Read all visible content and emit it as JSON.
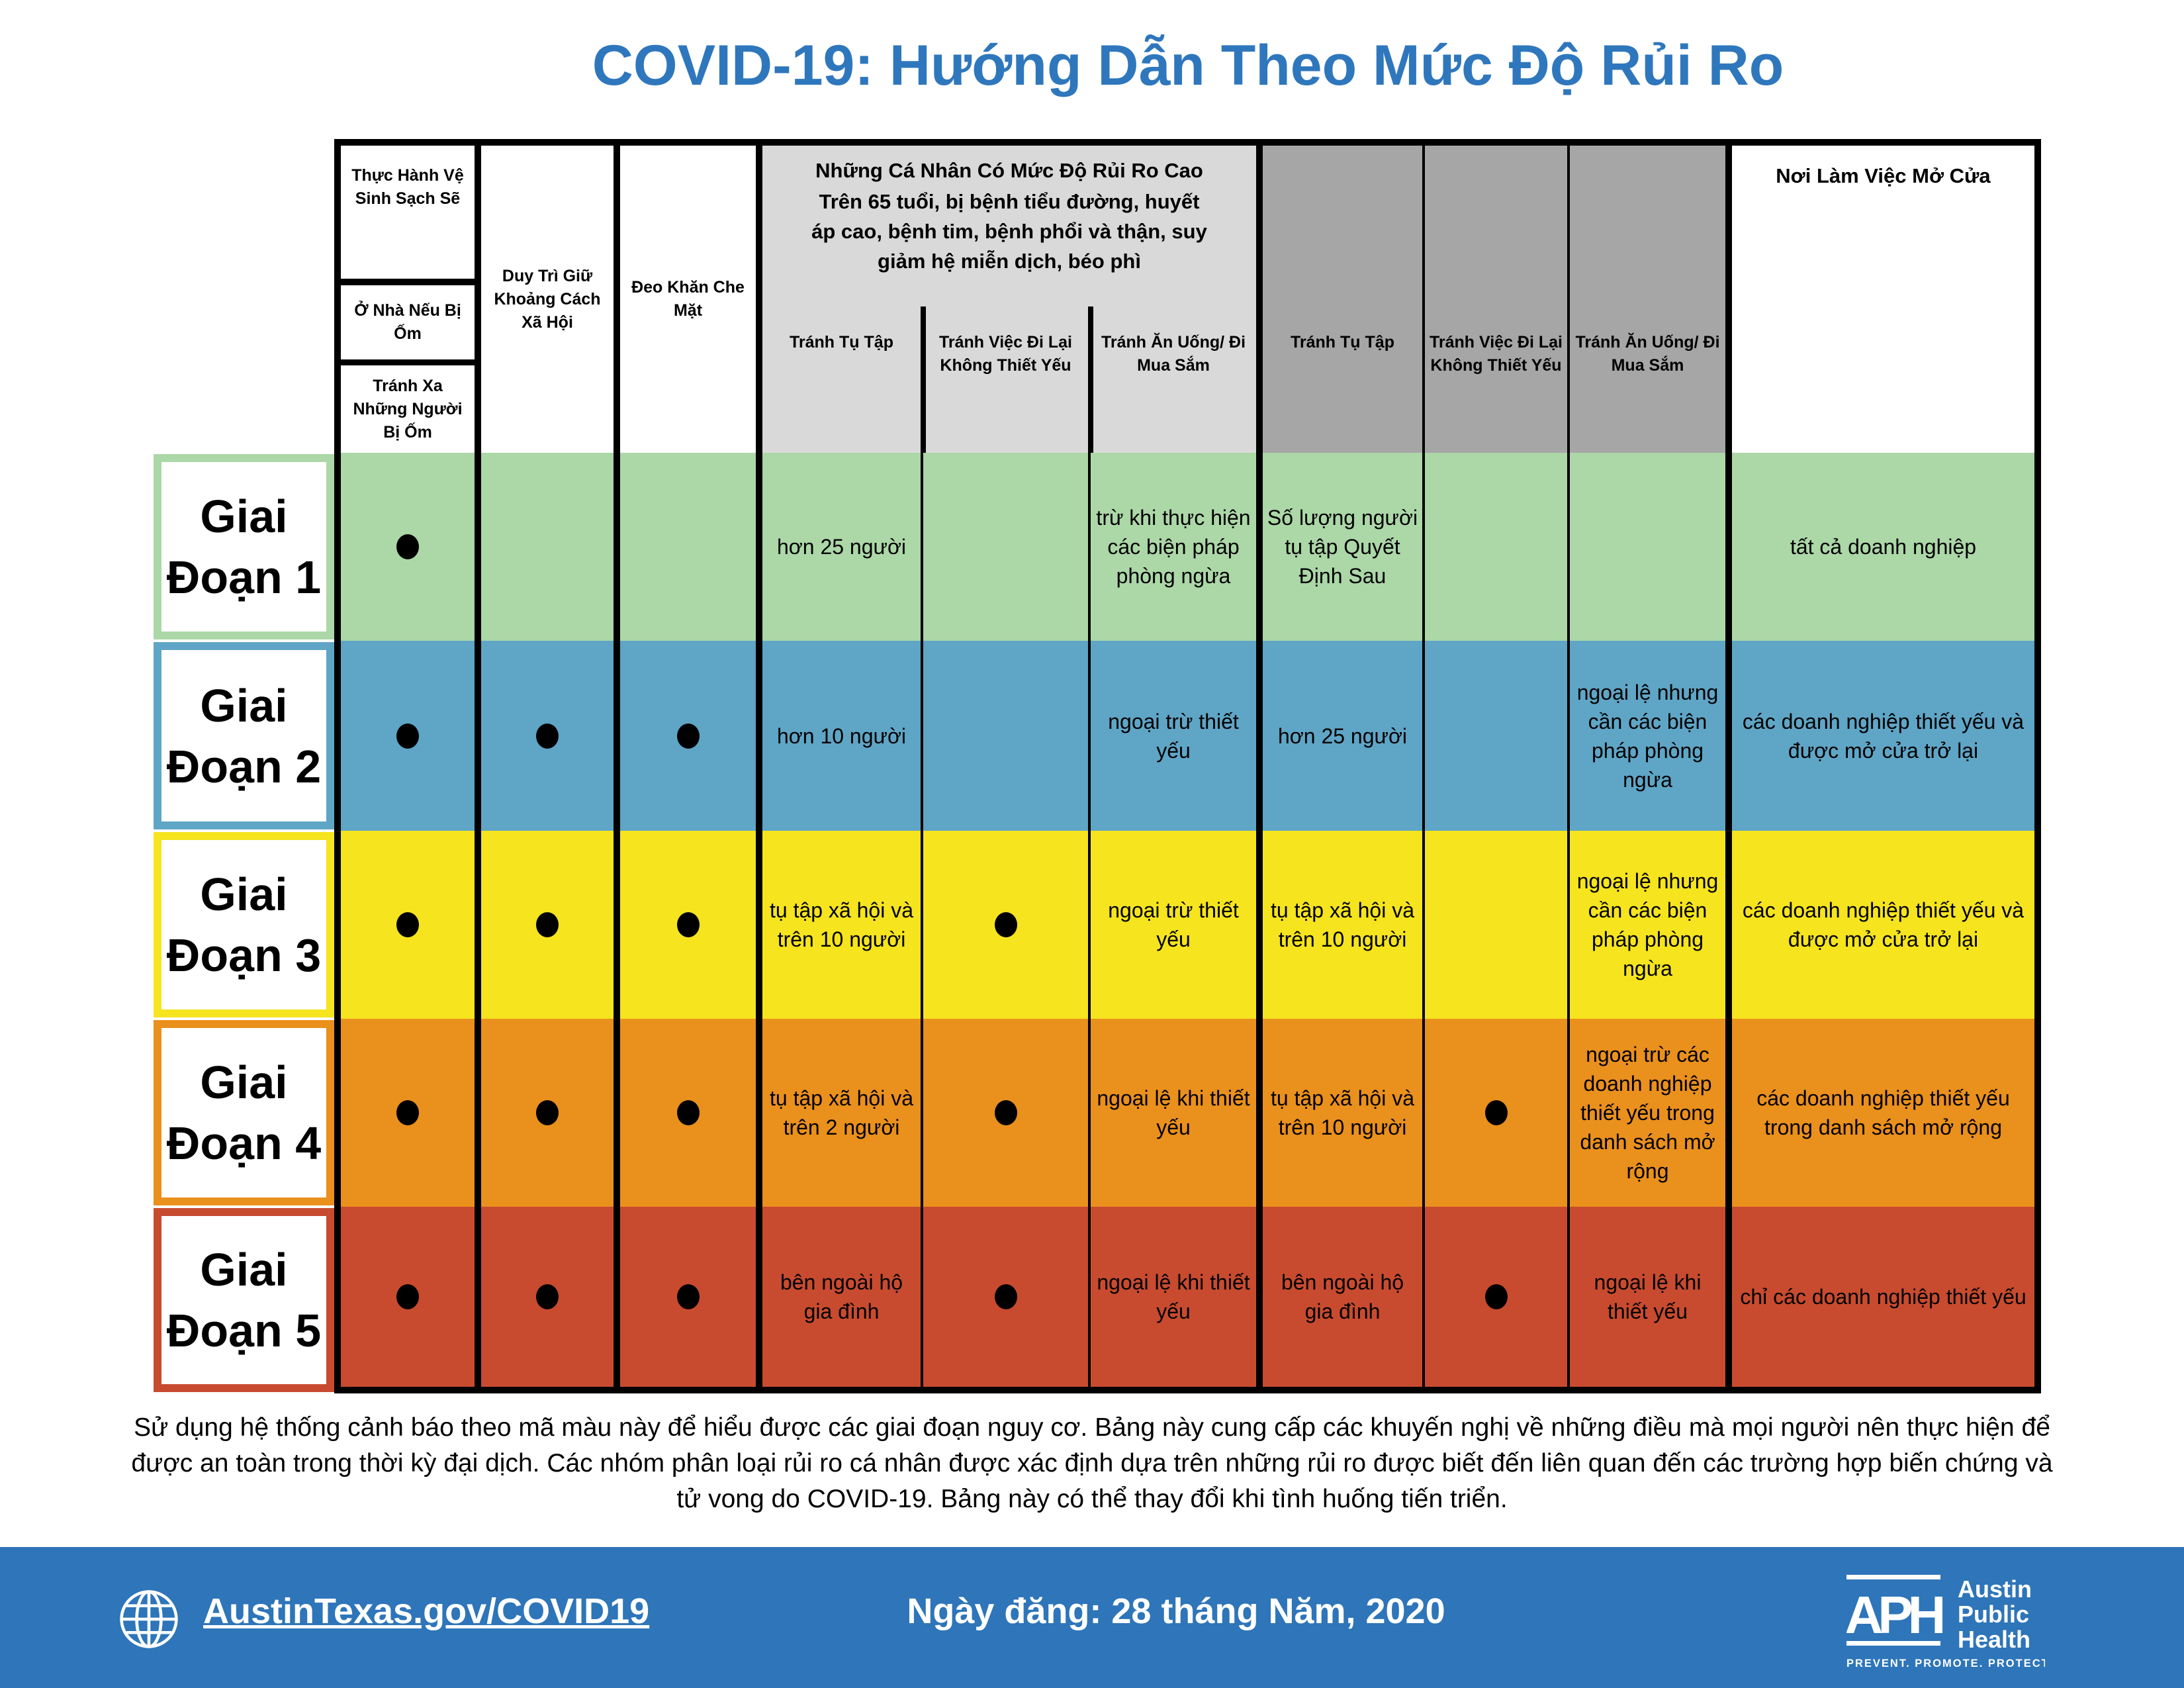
{
  "title": "COVID-19: Hướng Dẫn Theo Mức Độ Rủi Ro",
  "colors": {
    "title": "#2f77bd",
    "light_gray": "#d9d9d9",
    "dark_gray": "#a6a6a6",
    "footer": "#2e75b9"
  },
  "header": {
    "hygiene": "Thực Hành Vệ Sinh Sạch Sẽ",
    "stay_home": "Ở Nhà Nếu Bị Ốm",
    "avoid_sick": "Tránh Xa Những Người Bị Ốm",
    "distancing": "Duy Trì Giữ Khoảng Cách Xã Hội",
    "mask": "Đeo Khăn Che Mặt",
    "high_risk_title": "Những Cá Nhân Có Mức Độ Rủi Ro Cao",
    "high_risk_desc": "Trên 65 tuổi, bị bệnh tiểu đường, huyết áp cao, bệnh tim, bệnh phổi và thận, suy giảm hệ miễn dịch, béo phì",
    "high_risk_cols": [
      "Tránh Tụ Tập",
      "Tránh Việc Đi Lại Không Thiết Yếu",
      "Tránh Ăn Uống/ Đi Mua Sắm"
    ],
    "general_cols": [
      "Tránh Tụ Tập",
      "Tránh Việc Đi Lại Không Thiết Yếu",
      "Tránh Ăn Uống/ Đi Mua Sắm"
    ],
    "workplaces": "Nơi Làm Việc Mở Cửa"
  },
  "stages": [
    {
      "line1": "Giai",
      "line2": "Đoạn 1",
      "color": "#acd7a7",
      "border": "#acd7a7",
      "cells": [
        true,
        false,
        false,
        "hơn 25 người",
        "",
        "trừ khi thực hiện các biện pháp phòng ngừa",
        "Số lượng người tụ tập Quyết Định Sau",
        "",
        "",
        "tất cả doanh nghiệp"
      ]
    },
    {
      "line1": "Giai",
      "line2": "Đoạn 2",
      "color": "#5fa5c6",
      "border": "#5fa5c6",
      "cells": [
        true,
        true,
        true,
        "hơn 10 người",
        "",
        "ngoại trừ thiết yếu",
        "hơn 25 người",
        "",
        "ngoại lệ nhưng cần các biện pháp phòng ngừa",
        "các doanh nghiệp thiết yếu và được mở cửa trở lại"
      ]
    },
    {
      "line1": "Giai",
      "line2": "Đoạn 3",
      "color": "#f5e41e",
      "border": "#f5e41e",
      "cells": [
        true,
        true,
        true,
        "tụ tập xã hội và trên 10 người",
        true,
        "ngoại trừ thiết yếu",
        "tụ tập xã hội và trên 10 người",
        "",
        "ngoại lệ nhưng cần các biện pháp phòng ngừa",
        "các doanh nghiệp thiết yếu và được mở cửa trở lại"
      ]
    },
    {
      "line1": "Giai",
      "line2": "Đoạn 4",
      "color": "#ea901d",
      "border": "#ea901d",
      "cells": [
        true,
        true,
        true,
        "tụ tập xã hội và trên 2 người",
        true,
        "ngoại lệ khi thiết yếu",
        "tụ tập xã hội và trên 10 người",
        true,
        "ngoại trừ các doanh nghiệp thiết yếu trong danh sách mở rộng",
        "các doanh nghiệp thiết yếu trong danh sách mở rộng"
      ]
    },
    {
      "line1": "Giai",
      "line2": "Đoạn 5",
      "color": "#c84b2f",
      "border": "#c84b2f",
      "cells": [
        true,
        true,
        true,
        "bên ngoài hộ gia đình",
        true,
        "ngoại lệ khi thiết yếu",
        "bên ngoài hộ gia đình",
        true,
        "ngoại lệ khi thiết yếu",
        "chỉ các doanh nghiệp thiết yếu"
      ]
    }
  ],
  "note": "Sử dụng hệ thống cảnh báo theo mã màu này để hiểu được các giai đoạn nguy cơ. Bảng này cung cấp các khuyến nghị về những điều mà mọi người nên thực hiện để được an toàn trong thời kỳ đại dịch. Các nhóm phân loại rủi ro cá nhân được xác định dựa trên những rủi ro được biết đến liên quan đến các trường hợp biến chứng và tử vong do COVID-19. Bảng này có thể thay đổi khi tình huống tiến triển.",
  "footer": {
    "link": "AustinTexas.gov/COVID19",
    "date": "Ngày đăng: 28 tháng Năm, 2020",
    "globe_icon": "globe-icon",
    "logo": {
      "mark": "APH",
      "name_lines": [
        "Austin",
        "Public",
        "Health"
      ],
      "tagline": "PREVENT. PROMOTE. PROTECT."
    }
  }
}
